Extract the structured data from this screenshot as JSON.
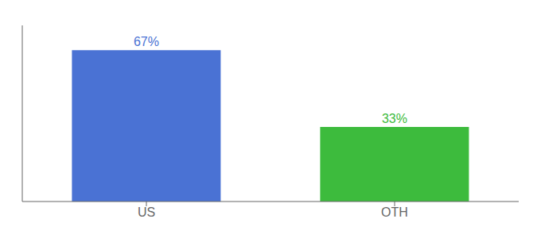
{
  "chart_data": {
    "type": "bar",
    "categories": [
      "US",
      "OTH"
    ],
    "values": [
      67,
      33
    ],
    "value_labels": [
      "67%",
      "33%"
    ],
    "colors": [
      "#4a72d4",
      "#3dbb3d"
    ],
    "ylim": [
      0,
      78
    ],
    "data_labels": true,
    "tick_labels": "x",
    "grid": false
  }
}
